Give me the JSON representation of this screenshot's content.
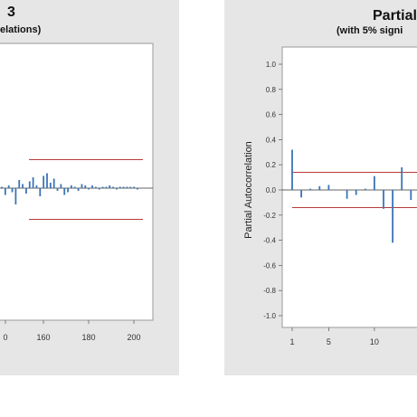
{
  "left_chart": {
    "title_fragment": "3",
    "subtitle_fragment": "elations)",
    "xticks": [
      "0",
      "160",
      "180",
      "200"
    ]
  },
  "right_chart": {
    "title_fragment": "Partial",
    "subtitle_fragment": "(with 5% signi",
    "ylabel": "Partial Autocorrelation",
    "yticks": [
      "1.0",
      "0.8",
      "0.6",
      "0.4",
      "0.2",
      "0.0",
      "-0.2",
      "-0.4",
      "-0.6",
      "-0.8",
      "-1.0"
    ],
    "xticks": [
      "1",
      "5",
      "10"
    ]
  },
  "colors": {
    "bar": "#3a74b8",
    "limit": "#b83a3a",
    "frame": "#999999"
  },
  "chart_data": [
    {
      "type": "bar",
      "chart": "acf",
      "x_range": [
        120,
        205
      ],
      "ylim": [
        -1,
        1
      ],
      "values": [
        0.01,
        -0.05,
        0.02,
        -0.03,
        -0.12,
        0.06,
        0.03,
        -0.04,
        0.05,
        0.08,
        0.02,
        -0.06,
        0.09,
        0.11,
        0.04,
        0.07,
        -0.02,
        0.03,
        -0.05,
        -0.03,
        0.02,
        0.01,
        -0.02,
        0.03,
        0.02,
        -0.01,
        0.02,
        0.01,
        -0.01,
        0.01,
        0.01,
        0.02,
        0.01,
        -0.01,
        0.01,
        0.01,
        0.01,
        0.01,
        0.01,
        -0.01
      ],
      "upper_limit": 0.21,
      "lower_limit": -0.23
    },
    {
      "type": "bar",
      "chart": "pacf",
      "xlim": [
        0,
        14
      ],
      "ylim": [
        -1.05,
        1.05
      ],
      "x": [
        1,
        2,
        3,
        4,
        5,
        6,
        7,
        8,
        9,
        10,
        11,
        12,
        13,
        14
      ],
      "values": [
        0.32,
        -0.06,
        0.01,
        0.03,
        0.04,
        0.0,
        -0.07,
        -0.04,
        0.01,
        0.11,
        -0.15,
        -0.42,
        0.18,
        -0.08
      ],
      "upper_limit": 0.14,
      "lower_limit": -0.14
    }
  ]
}
